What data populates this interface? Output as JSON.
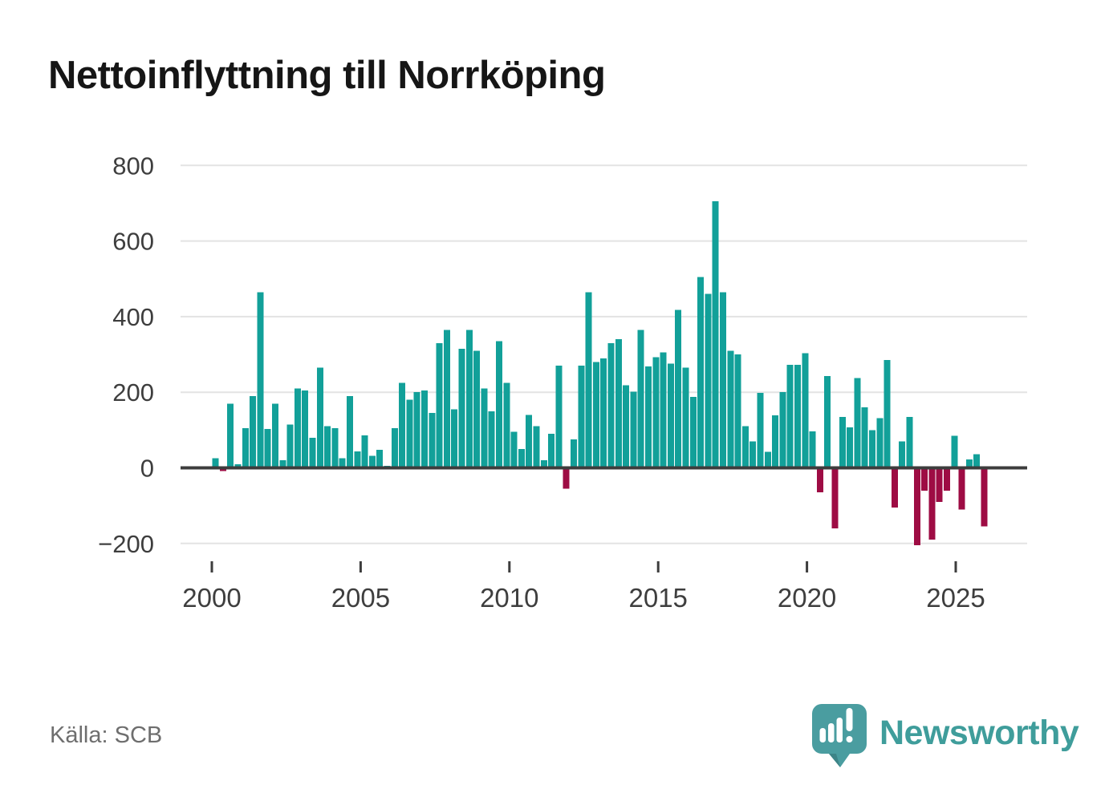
{
  "title": "Nettoinflyttning till Norrköping",
  "source": "Källa: SCB",
  "branding": {
    "name": "Newsworthy"
  },
  "colors": {
    "positive_bar": "#12a099",
    "negative_bar": "#9e0c44",
    "grid": "#e3e3e3",
    "axis": "#3d3d3d",
    "tick_text": "#3e3e3e",
    "title_text": "#161616",
    "source_text": "#6e6e6e",
    "brand_teal": "#4a9da0",
    "brand_text": "#3f9d9b"
  },
  "chart_data": {
    "type": "bar",
    "title": "Nettoinflyttning till Norrköping",
    "xlabel": "",
    "ylabel": "",
    "x_unit": "quarter",
    "start_period": "2000Q1",
    "end_period": "2025Q4",
    "ylim": [
      -260,
      840
    ],
    "grid": true,
    "y_ticks": [
      {
        "label": "800",
        "value": 800
      },
      {
        "label": "600",
        "value": 600
      },
      {
        "label": "400",
        "value": 400
      },
      {
        "label": "200",
        "value": 200
      },
      {
        "label": "0",
        "value": 0
      },
      {
        "label": "−200",
        "value": -200
      }
    ],
    "x_ticks": [
      {
        "label": "2000",
        "quarter_index": 0
      },
      {
        "label": "2005",
        "quarter_index": 20
      },
      {
        "label": "2010",
        "quarter_index": 40
      },
      {
        "label": "2015",
        "quarter_index": 60
      },
      {
        "label": "2020",
        "quarter_index": 80
      },
      {
        "label": "2025",
        "quarter_index": 100
      }
    ],
    "values": [
      25,
      -8,
      170,
      10,
      105,
      190,
      465,
      103,
      170,
      20,
      115,
      210,
      205,
      80,
      265,
      110,
      105,
      25,
      190,
      43,
      86,
      32,
      48,
      5,
      105,
      225,
      180,
      200,
      205,
      145,
      330,
      365,
      155,
      315,
      365,
      310,
      210,
      150,
      335,
      225,
      95,
      50,
      140,
      110,
      20,
      90,
      270,
      -55,
      75,
      270,
      465,
      280,
      290,
      330,
      340,
      218,
      202,
      365,
      268,
      293,
      305,
      276,
      418,
      265,
      188,
      505,
      460,
      705,
      465,
      310,
      300,
      110,
      70,
      198,
      42,
      139,
      200,
      273,
      273,
      303,
      96,
      -65,
      243,
      -160,
      135,
      107,
      238,
      160,
      100,
      132,
      285,
      -105,
      70,
      135,
      -205,
      -60,
      -190,
      -90,
      -60,
      85,
      -110,
      22,
      36,
      -155
    ]
  }
}
